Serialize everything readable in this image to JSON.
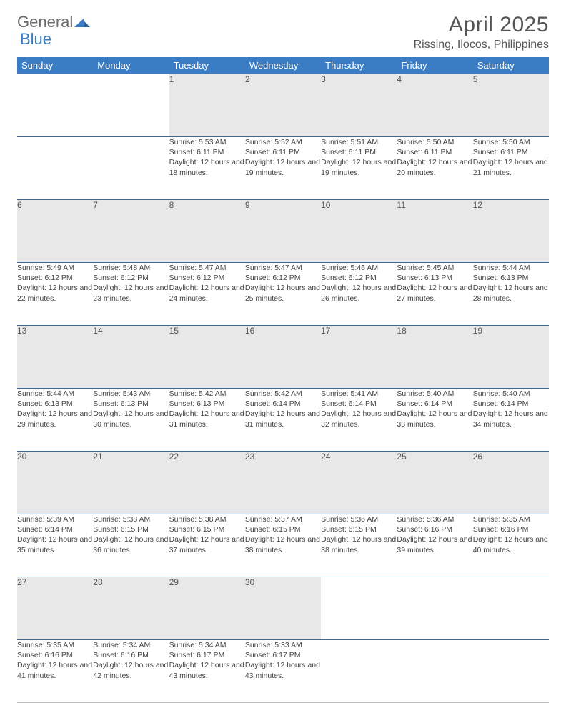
{
  "logo": {
    "text1": "General",
    "text2": "Blue",
    "triangle_color": "#3b7dc4"
  },
  "title": "April 2025",
  "location": "Rissing, Ilocos, Philippines",
  "header_bg": "#3b7dc4",
  "daynum_bg": "#e8e8e8",
  "border_color": "#3b6a9a",
  "weekdays": [
    "Sunday",
    "Monday",
    "Tuesday",
    "Wednesday",
    "Thursday",
    "Friday",
    "Saturday"
  ],
  "weeks": [
    [
      null,
      null,
      {
        "n": "1",
        "sr": "5:53 AM",
        "ss": "6:11 PM",
        "dl": "12 hours and 18 minutes."
      },
      {
        "n": "2",
        "sr": "5:52 AM",
        "ss": "6:11 PM",
        "dl": "12 hours and 19 minutes."
      },
      {
        "n": "3",
        "sr": "5:51 AM",
        "ss": "6:11 PM",
        "dl": "12 hours and 19 minutes."
      },
      {
        "n": "4",
        "sr": "5:50 AM",
        "ss": "6:11 PM",
        "dl": "12 hours and 20 minutes."
      },
      {
        "n": "5",
        "sr": "5:50 AM",
        "ss": "6:11 PM",
        "dl": "12 hours and 21 minutes."
      }
    ],
    [
      {
        "n": "6",
        "sr": "5:49 AM",
        "ss": "6:12 PM",
        "dl": "12 hours and 22 minutes."
      },
      {
        "n": "7",
        "sr": "5:48 AM",
        "ss": "6:12 PM",
        "dl": "12 hours and 23 minutes."
      },
      {
        "n": "8",
        "sr": "5:47 AM",
        "ss": "6:12 PM",
        "dl": "12 hours and 24 minutes."
      },
      {
        "n": "9",
        "sr": "5:47 AM",
        "ss": "6:12 PM",
        "dl": "12 hours and 25 minutes."
      },
      {
        "n": "10",
        "sr": "5:46 AM",
        "ss": "6:12 PM",
        "dl": "12 hours and 26 minutes."
      },
      {
        "n": "11",
        "sr": "5:45 AM",
        "ss": "6:13 PM",
        "dl": "12 hours and 27 minutes."
      },
      {
        "n": "12",
        "sr": "5:44 AM",
        "ss": "6:13 PM",
        "dl": "12 hours and 28 minutes."
      }
    ],
    [
      {
        "n": "13",
        "sr": "5:44 AM",
        "ss": "6:13 PM",
        "dl": "12 hours and 29 minutes."
      },
      {
        "n": "14",
        "sr": "5:43 AM",
        "ss": "6:13 PM",
        "dl": "12 hours and 30 minutes."
      },
      {
        "n": "15",
        "sr": "5:42 AM",
        "ss": "6:13 PM",
        "dl": "12 hours and 31 minutes."
      },
      {
        "n": "16",
        "sr": "5:42 AM",
        "ss": "6:14 PM",
        "dl": "12 hours and 31 minutes."
      },
      {
        "n": "17",
        "sr": "5:41 AM",
        "ss": "6:14 PM",
        "dl": "12 hours and 32 minutes."
      },
      {
        "n": "18",
        "sr": "5:40 AM",
        "ss": "6:14 PM",
        "dl": "12 hours and 33 minutes."
      },
      {
        "n": "19",
        "sr": "5:40 AM",
        "ss": "6:14 PM",
        "dl": "12 hours and 34 minutes."
      }
    ],
    [
      {
        "n": "20",
        "sr": "5:39 AM",
        "ss": "6:14 PM",
        "dl": "12 hours and 35 minutes."
      },
      {
        "n": "21",
        "sr": "5:38 AM",
        "ss": "6:15 PM",
        "dl": "12 hours and 36 minutes."
      },
      {
        "n": "22",
        "sr": "5:38 AM",
        "ss": "6:15 PM",
        "dl": "12 hours and 37 minutes."
      },
      {
        "n": "23",
        "sr": "5:37 AM",
        "ss": "6:15 PM",
        "dl": "12 hours and 38 minutes."
      },
      {
        "n": "24",
        "sr": "5:36 AM",
        "ss": "6:15 PM",
        "dl": "12 hours and 38 minutes."
      },
      {
        "n": "25",
        "sr": "5:36 AM",
        "ss": "6:16 PM",
        "dl": "12 hours and 39 minutes."
      },
      {
        "n": "26",
        "sr": "5:35 AM",
        "ss": "6:16 PM",
        "dl": "12 hours and 40 minutes."
      }
    ],
    [
      {
        "n": "27",
        "sr": "5:35 AM",
        "ss": "6:16 PM",
        "dl": "12 hours and 41 minutes."
      },
      {
        "n": "28",
        "sr": "5:34 AM",
        "ss": "6:16 PM",
        "dl": "12 hours and 42 minutes."
      },
      {
        "n": "29",
        "sr": "5:34 AM",
        "ss": "6:17 PM",
        "dl": "12 hours and 43 minutes."
      },
      {
        "n": "30",
        "sr": "5:33 AM",
        "ss": "6:17 PM",
        "dl": "12 hours and 43 minutes."
      },
      null,
      null,
      null
    ]
  ],
  "labels": {
    "sunrise": "Sunrise: ",
    "sunset": "Sunset: ",
    "daylight": "Daylight: "
  }
}
